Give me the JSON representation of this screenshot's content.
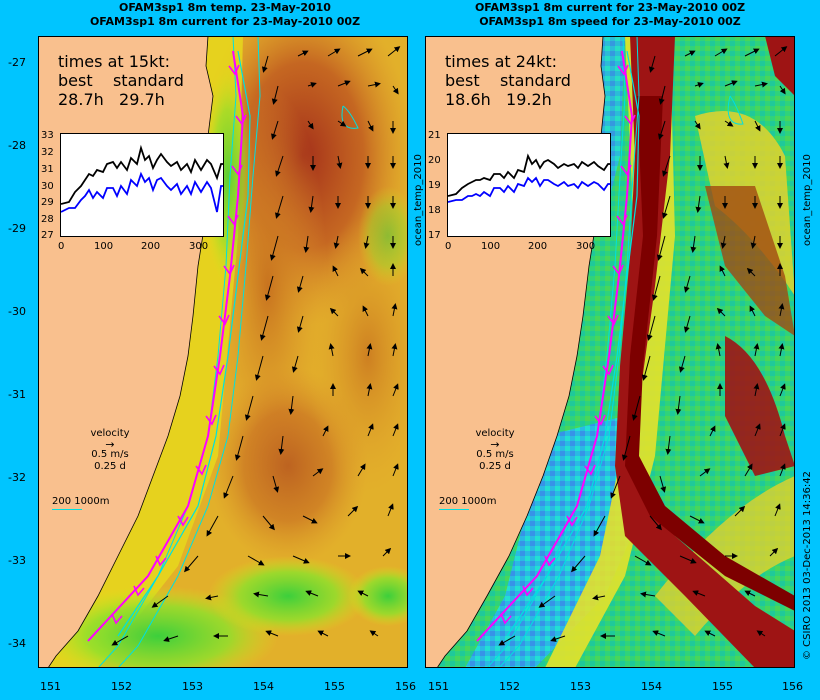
{
  "left_panel": {
    "title_line1": "OFAM3sp1 8m temp. 23-May-2010",
    "title_line2": "OFAM3sp1 8m current for 23-May-2010 00Z",
    "times_heading": "times at 15kt:",
    "col_best": "best",
    "col_standard": "standard",
    "best_value": "28.7h",
    "standard_value": "29.7h",
    "inset_yticks": [
      "33",
      "32",
      "31",
      "30",
      "29",
      "28",
      "27"
    ],
    "inset_xticks": [
      "0",
      "100",
      "200",
      "300"
    ],
    "side_label": "ocean_temp_2010"
  },
  "right_panel": {
    "title_line1": "OFAM3sp1 8m current for 23-May-2010 00Z",
    "title_line2": "OFAM3sp1 8m speed for 23-May-2010 00Z",
    "times_heading": "times at 24kt:",
    "col_best": "best",
    "col_standard": "standard",
    "best_value": "18.6h",
    "standard_value": "19.2h",
    "inset_yticks": [
      "21",
      "20",
      "19",
      "18",
      "17"
    ],
    "inset_xticks": [
      "0",
      "100",
      "200",
      "300"
    ],
    "side_label": "ocean_temp_2010"
  },
  "velocity_legend": {
    "label": "velocity",
    "speed": "0.5 m/s",
    "duration": "0.25 d"
  },
  "depth_legend": {
    "text": "200  1000m"
  },
  "lat_ticks": [
    "-27",
    "-28",
    "-29",
    "-30",
    "-31",
    "-32",
    "-33",
    "-34"
  ],
  "lon_ticks": [
    "151",
    "152",
    "153",
    "154",
    "155",
    "156"
  ],
  "credit": "© CSIRO 2013   03-Dec-2013 14:36:42",
  "colors": {
    "background": "#00c5ff",
    "land": "#f9c08e",
    "route_best": "#ff00ff",
    "route_standard": "#00e0e0",
    "inset_best": "#000000",
    "inset_standard": "#0000ff"
  }
}
